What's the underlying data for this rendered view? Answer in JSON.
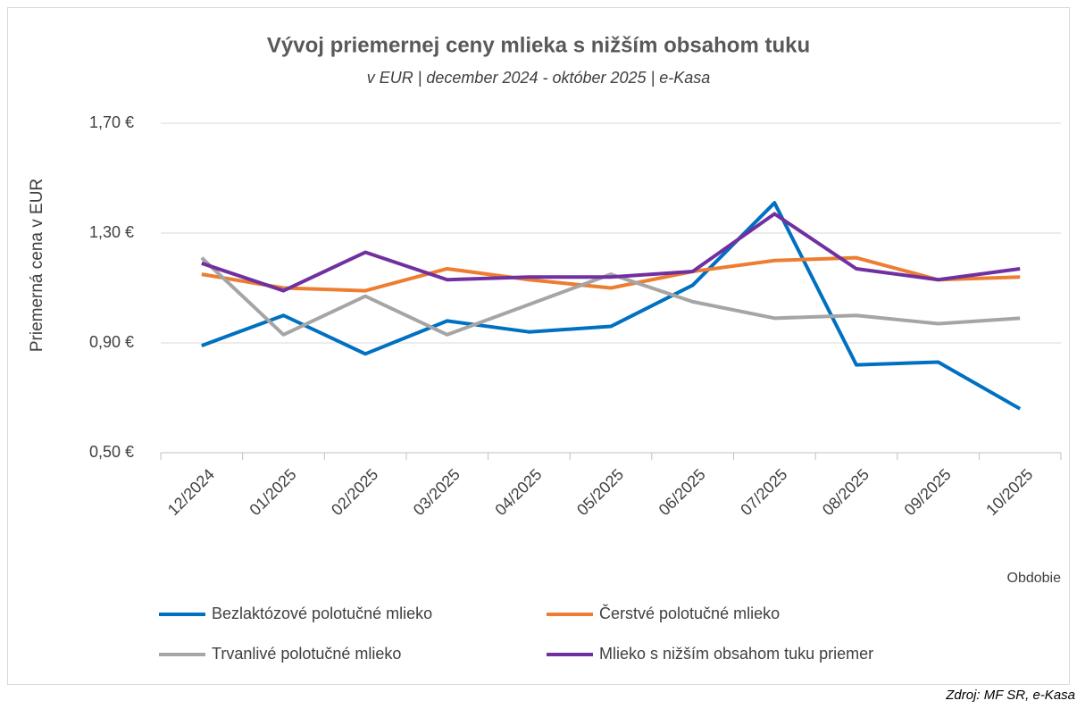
{
  "chart_data": {
    "type": "line",
    "title": "Vývoj priemernej ceny mlieka s nižším obsahom tuku",
    "subtitle": "v EUR | december 2024 - október 2025 | e-Kasa",
    "y_label": "Priemerná cena v EUR",
    "x_label": "Obdobie",
    "source": "Zdroj: MF SR, e-Kasa",
    "categories": [
      "12/2024",
      "01/2025",
      "02/2025",
      "03/2025",
      "04/2025",
      "05/2025",
      "06/2025",
      "07/2025",
      "08/2025",
      "09/2025",
      "10/2025"
    ],
    "series": [
      {
        "name": "Bezlaktózové polotučné mlieko",
        "color": "#0070c0",
        "values": [
          0.89,
          1.0,
          0.86,
          0.98,
          0.94,
          0.96,
          1.11,
          1.41,
          0.82,
          0.83,
          0.66
        ]
      },
      {
        "name": "Čerstvé polotučné mlieko",
        "color": "#ed7d31",
        "values": [
          1.15,
          1.1,
          1.09,
          1.17,
          1.13,
          1.1,
          1.16,
          1.2,
          1.21,
          1.13,
          1.14
        ]
      },
      {
        "name": "Trvanlivé polotučné mlieko",
        "color": "#a5a5a5",
        "values": [
          1.21,
          0.93,
          1.07,
          0.93,
          1.04,
          1.15,
          1.05,
          0.99,
          1.0,
          0.97,
          0.99
        ]
      },
      {
        "name": "Mlieko s nižším obsahom tuku priemer",
        "color": "#7030a0",
        "values": [
          1.19,
          1.09,
          1.23,
          1.13,
          1.14,
          1.14,
          1.16,
          1.37,
          1.17,
          1.13,
          1.17
        ]
      }
    ],
    "ylim": [
      0.5,
      1.7
    ],
    "yticks": [
      {
        "value": 0.5,
        "label": "0,50 €"
      },
      {
        "value": 0.9,
        "label": "0,90 €"
      },
      {
        "value": 1.3,
        "label": "1,30 €"
      },
      {
        "value": 1.7,
        "label": "1,70 €"
      }
    ],
    "grid": true,
    "legend": "bottom"
  }
}
